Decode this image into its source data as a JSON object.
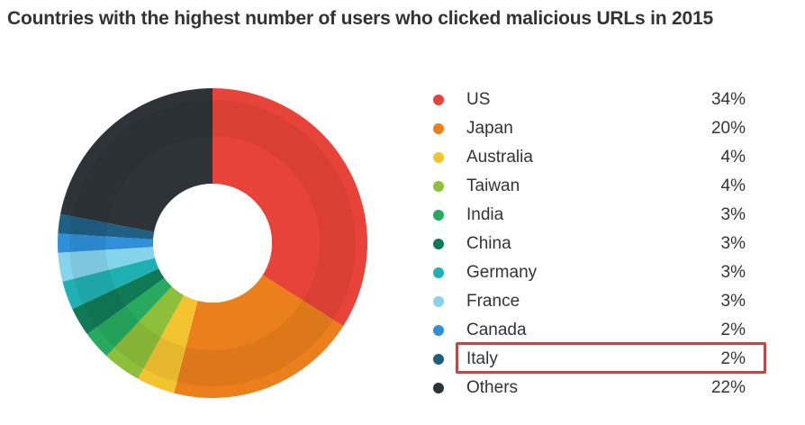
{
  "chart_data": {
    "type": "pie",
    "title": "Countries with the highest number of users who clicked malicious URLs in 2015",
    "categories": [
      "US",
      "Japan",
      "Australia",
      "Taiwan",
      "India",
      "China",
      "Germany",
      "France",
      "Canada",
      "Italy",
      "Others"
    ],
    "values": [
      34,
      20,
      4,
      4,
      3,
      3,
      3,
      3,
      2,
      2,
      22
    ],
    "value_labels": [
      "34%",
      "20%",
      "4%",
      "4%",
      "3%",
      "3%",
      "3%",
      "3%",
      "2%",
      "2%",
      "22%"
    ],
    "colors": [
      "#e84338",
      "#ea7f1c",
      "#f4c430",
      "#8dbf3a",
      "#27a95f",
      "#107a56",
      "#1fb0b3",
      "#86d3ec",
      "#2f8fd8",
      "#1f5f84",
      "#2e3338"
    ],
    "donut": true,
    "legend_placement": "right",
    "highlighted_category": "Italy"
  }
}
